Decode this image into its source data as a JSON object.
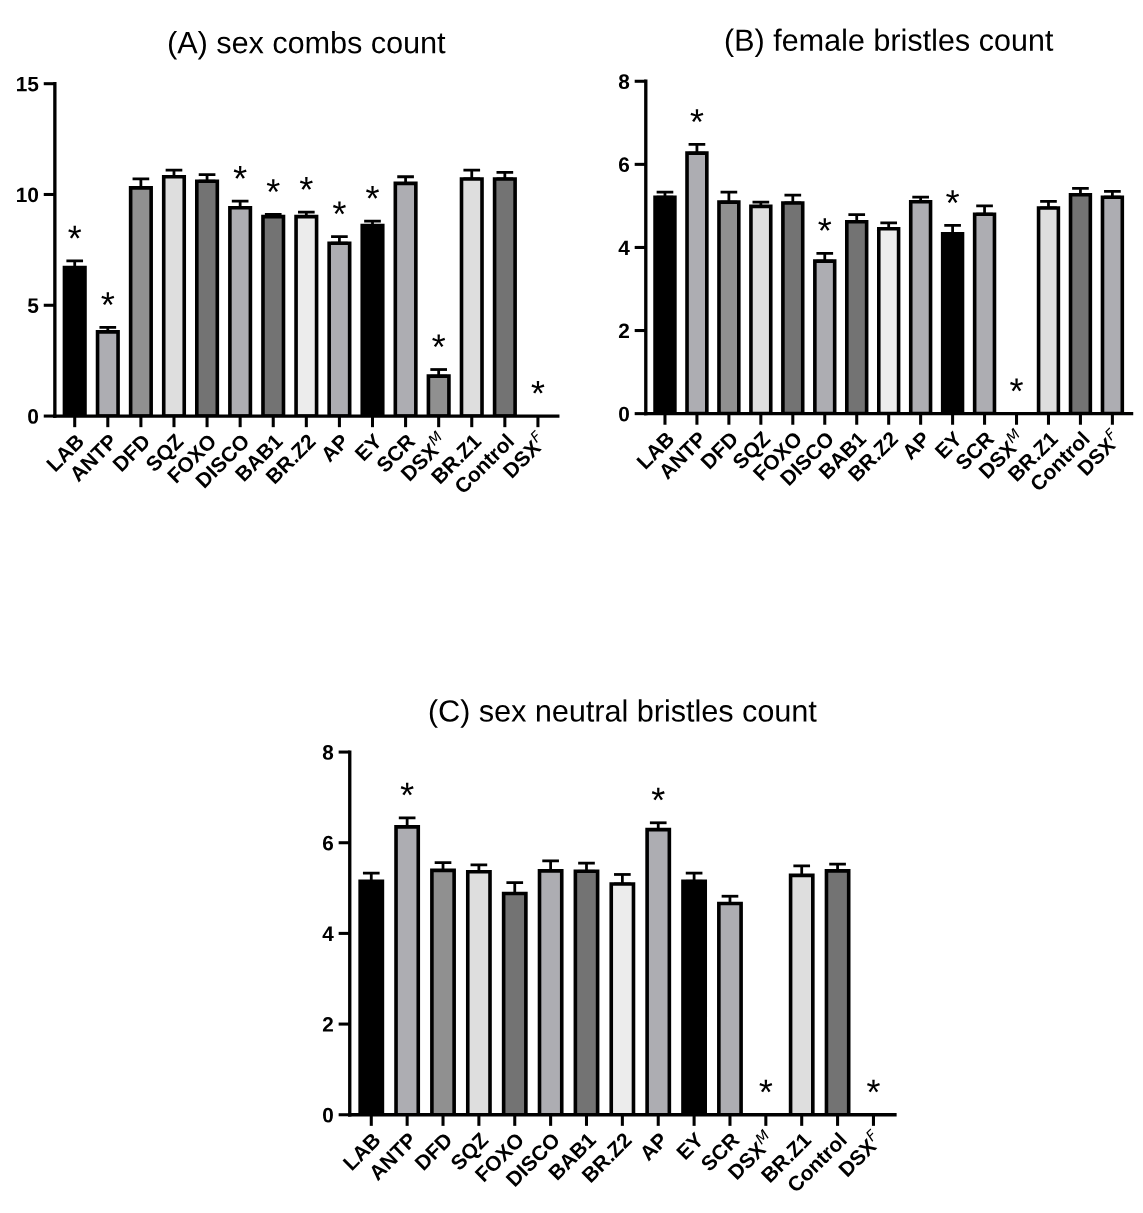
{
  "chart_data": [
    {
      "type": "bar",
      "title": "(A) sex combs count",
      "categories": [
        "LAB",
        "ANTP",
        "DFD",
        "SQZ",
        "FOXO",
        "DISCO",
        "BAB1",
        "BR.Z2",
        "AP",
        "EY",
        "SCR",
        "DSX$^{M}$",
        "BR.Z1",
        "Control",
        "DSX$^{F}$"
      ],
      "values": [
        6.7,
        3.8,
        10.3,
        10.8,
        10.6,
        9.4,
        9.0,
        9.0,
        7.8,
        8.6,
        10.5,
        1.8,
        10.7,
        10.7,
        0
      ],
      "errors": [
        [
          6.7,
          7.0
        ],
        [
          3.8,
          4.0
        ],
        [
          10.3,
          10.7
        ],
        [
          10.8,
          11.1
        ],
        [
          10.6,
          10.9
        ],
        [
          9.4,
          9.7
        ],
        [
          9.0,
          9.1
        ],
        [
          9.0,
          9.2
        ],
        [
          7.8,
          8.1
        ],
        [
          8.6,
          8.8
        ],
        [
          10.5,
          10.8
        ],
        [
          1.8,
          2.1
        ],
        [
          10.7,
          11.1
        ],
        [
          10.7,
          11.0
        ],
        null
      ],
      "colors": [
        "#000000",
        "#adadb2",
        "#909090",
        "#dedede",
        "#737373",
        "#adadb2",
        "#737373",
        "#ececec",
        "#adadb2",
        "#000000",
        "#adadb2",
        "#909090",
        "#dedede",
        "#737373",
        "#adadb2"
      ],
      "ylim": [
        0,
        15
      ],
      "yticks": [
        0,
        5,
        10,
        15
      ],
      "annotations": [
        {
          "text": "*",
          "x": "LAB",
          "y": 6.7
        },
        {
          "text": "*",
          "x": "ANTP",
          "y": 3.8
        },
        {
          "text": "*",
          "x": "DISCO",
          "y": 9.4
        },
        {
          "text": "*",
          "x": "BAB1",
          "y": 9.0
        },
        {
          "text": "*",
          "x": "BR.Z2",
          "y": 9.0
        },
        {
          "text": "*",
          "x": "AP",
          "y": 7.8
        },
        {
          "text": "*",
          "x": "EY",
          "y": 8.6
        },
        {
          "text": "*",
          "x": "DSX$^{M}$",
          "y": 1.8
        },
        {
          "text": "*",
          "x": "DSX$^{F}$",
          "y": 0
        }
      ]
    },
    {
      "type": "bar",
      "title": "(B) female bristles count",
      "categories": [
        "LAB",
        "ANTP",
        "DFD",
        "SQZ",
        "FOXO",
        "DISCO",
        "BAB1",
        "BR.Z2",
        "AP",
        "EY",
        "SCR",
        "DSX$^{M}$",
        "BR.Z1",
        "Control",
        "DSX$^{F}$"
      ],
      "values": [
        5.21,
        6.27,
        5.09,
        4.99,
        5.07,
        3.67,
        4.62,
        4.45,
        5.1,
        4.33,
        4.8,
        0,
        4.95,
        5.27,
        5.21
      ],
      "errors": [
        [
          5.21,
          5.33
        ],
        [
          6.27,
          6.48
        ],
        [
          5.09,
          5.33
        ],
        [
          4.99,
          5.09
        ],
        [
          5.07,
          5.26
        ],
        [
          3.67,
          3.86
        ],
        [
          4.62,
          4.79
        ],
        [
          4.45,
          4.59
        ],
        [
          5.1,
          5.21
        ],
        [
          4.33,
          4.53
        ],
        [
          4.8,
          5.0
        ],
        null,
        [
          4.95,
          5.11
        ],
        [
          5.27,
          5.42
        ],
        [
          5.21,
          5.35
        ]
      ],
      "colors": [
        "#000000",
        "#adadb2",
        "#909090",
        "#dedede",
        "#737373",
        "#adadb2",
        "#737373",
        "#ececec",
        "#adadb2",
        "#000000",
        "#adadb2",
        "#909090",
        "#dedede",
        "#737373",
        "#adadb2"
      ],
      "ylim": [
        0,
        8
      ],
      "yticks": [
        0,
        2,
        4,
        6,
        8
      ],
      "annotations": [
        {
          "text": "*",
          "x": "ANTP",
          "y": 6.27
        },
        {
          "text": "*",
          "x": "DISCO",
          "y": 3.67
        },
        {
          "text": "*",
          "x": "EY",
          "y": 4.33
        },
        {
          "text": "*",
          "x": "DSX$^{M}$",
          "y": 0
        }
      ]
    },
    {
      "type": "bar",
      "title": "(C) sex neutral bristles count",
      "categories": [
        "LAB",
        "ANTP",
        "DFD",
        "SQZ",
        "FOXO",
        "DISCO",
        "BAB1",
        "BR.Z2",
        "AP",
        "EY",
        "SCR",
        "DSX$^{M}$",
        "BR.Z1",
        "Control",
        "DSX$^{F}$"
      ],
      "values": [
        5.15,
        6.35,
        5.39,
        5.36,
        4.88,
        5.38,
        5.37,
        5.09,
        6.29,
        5.15,
        4.66,
        0,
        5.28,
        5.38,
        0
      ],
      "errors": [
        [
          5.15,
          5.33
        ],
        [
          6.35,
          6.55
        ],
        [
          5.39,
          5.56
        ],
        [
          5.36,
          5.51
        ],
        [
          4.88,
          5.12
        ],
        [
          5.38,
          5.6
        ],
        [
          5.37,
          5.55
        ],
        [
          5.09,
          5.3
        ],
        [
          6.29,
          6.44
        ],
        [
          5.15,
          5.33
        ],
        [
          4.66,
          4.82
        ],
        null,
        [
          5.28,
          5.49
        ],
        [
          5.38,
          5.53
        ],
        null
      ],
      "colors": [
        "#000000",
        "#adadb2",
        "#909090",
        "#dedede",
        "#737373",
        "#adadb2",
        "#737373",
        "#ececec",
        "#adadb2",
        "#000000",
        "#adadb2",
        "#909090",
        "#dedede",
        "#737373",
        "#adadb2"
      ],
      "ylim": [
        0,
        8
      ],
      "yticks": [
        0,
        2,
        4,
        6,
        8
      ],
      "annotations": [
        {
          "text": "*",
          "x": "ANTP",
          "y": 6.35
        },
        {
          "text": "*",
          "x": "AP",
          "y": 6.29
        },
        {
          "text": "*",
          "x": "DSX$^{M}$",
          "y": 0
        },
        {
          "text": "*",
          "x": "DSX$^{F}$",
          "y": 0
        }
      ]
    }
  ]
}
